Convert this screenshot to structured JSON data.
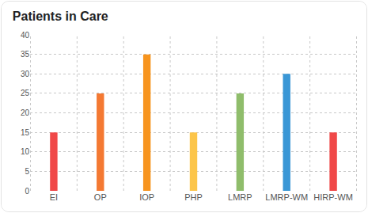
{
  "chart_data": {
    "type": "bar",
    "title": "Patients in Care",
    "categories": [
      "EI",
      "OP",
      "IOP",
      "PHP",
      "LMRP",
      "LMRP-WM",
      "HIRP-WM"
    ],
    "values": [
      15,
      25,
      35,
      15,
      25,
      30,
      15
    ],
    "colors": [
      "#f04848",
      "#f47932",
      "#f7941e",
      "#fcc54a",
      "#8fbd6b",
      "#3a97d6",
      "#f04848"
    ],
    "ylim": [
      0,
      40
    ],
    "yticks": [
      0,
      5,
      10,
      15,
      20,
      25,
      30,
      35,
      40
    ],
    "grid": true
  }
}
